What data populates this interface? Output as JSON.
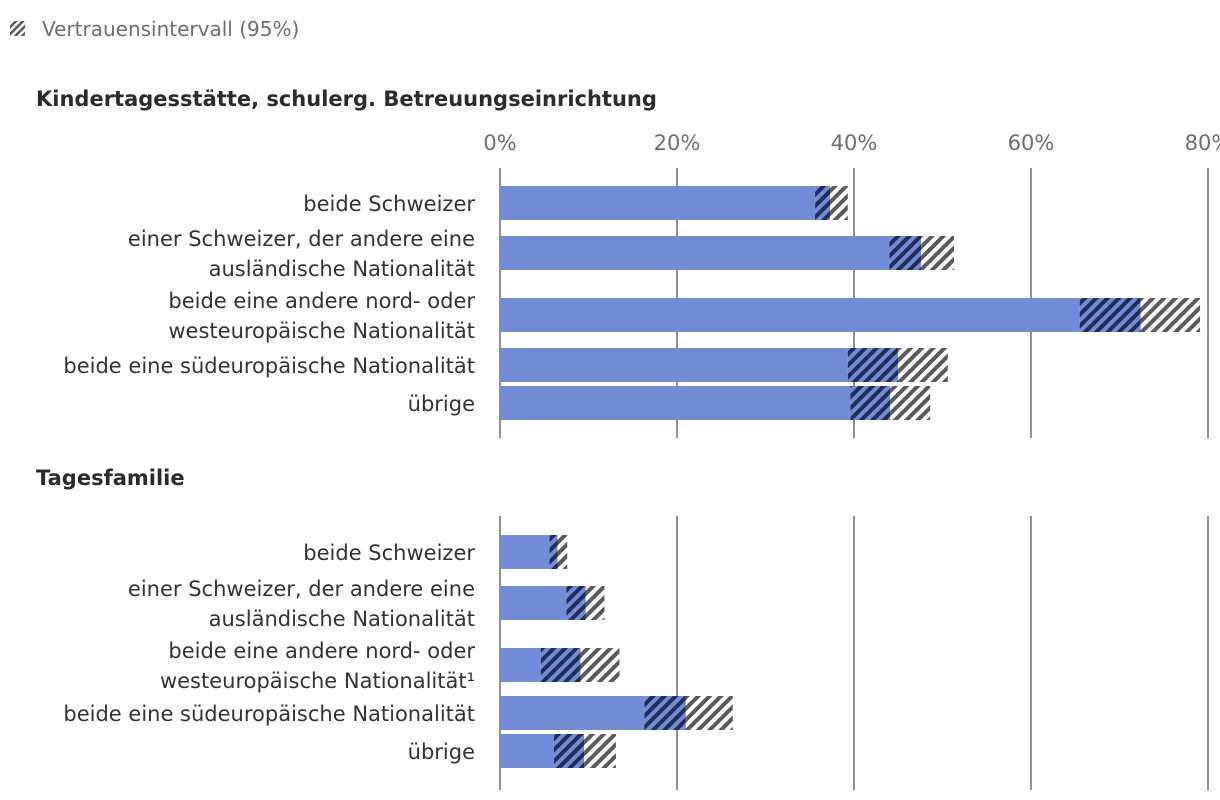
{
  "legend": {
    "label": "Vertrauensintervall (95%)"
  },
  "colors": {
    "bar": "#728cd8",
    "hatch_dark": "#1f2d57",
    "hatch_grey": "#5a5a5a",
    "grid": "#6b6b6b"
  },
  "chart_data": {
    "type": "bar",
    "orientation": "horizontal",
    "xlim": [
      0,
      80
    ],
    "ticks": [
      "0%",
      "20%",
      "40%",
      "60%",
      "80%"
    ],
    "tick_values": [
      0,
      20,
      40,
      60,
      80
    ],
    "grid": true,
    "panels": [
      {
        "title": "Kindertagesstätte, schulerg. Betreuungseinrichtung",
        "show_ticks": true,
        "categories": [
          [
            "beide Schweizer"
          ],
          [
            "einer Schweizer, der andere eine",
            "ausländische Nationalität"
          ],
          [
            "beide eine andere nord- oder",
            "westeuropäische Nationalität"
          ],
          [
            "beide eine südeuropäische Nationalität"
          ],
          [
            "übrige"
          ]
        ],
        "values": [
          37.3,
          47.6,
          72.4,
          45.0,
          44.1
        ],
        "ci_lower": [
          35.6,
          44.0,
          65.5,
          39.3,
          39.6
        ],
        "ci_upper": [
          39.3,
          51.3,
          79.1,
          50.6,
          48.6
        ]
      },
      {
        "title": "Tagesfamilie",
        "show_ticks": false,
        "categories": [
          [
            "beide Schweizer"
          ],
          [
            "einer Schweizer, der andere eine",
            "ausländische Nationalität"
          ],
          [
            "beide eine andere nord- oder",
            "westeuropäische Nationalität¹"
          ],
          [
            "beide eine südeuropäische Nationalität"
          ],
          [
            "übrige"
          ]
        ],
        "values": [
          6.5,
          9.7,
          9.1,
          21.0,
          9.5
        ],
        "ci_lower": [
          5.6,
          7.5,
          4.6,
          16.3,
          6.1
        ],
        "ci_upper": [
          7.6,
          11.8,
          13.5,
          26.3,
          13.1
        ]
      }
    ]
  }
}
